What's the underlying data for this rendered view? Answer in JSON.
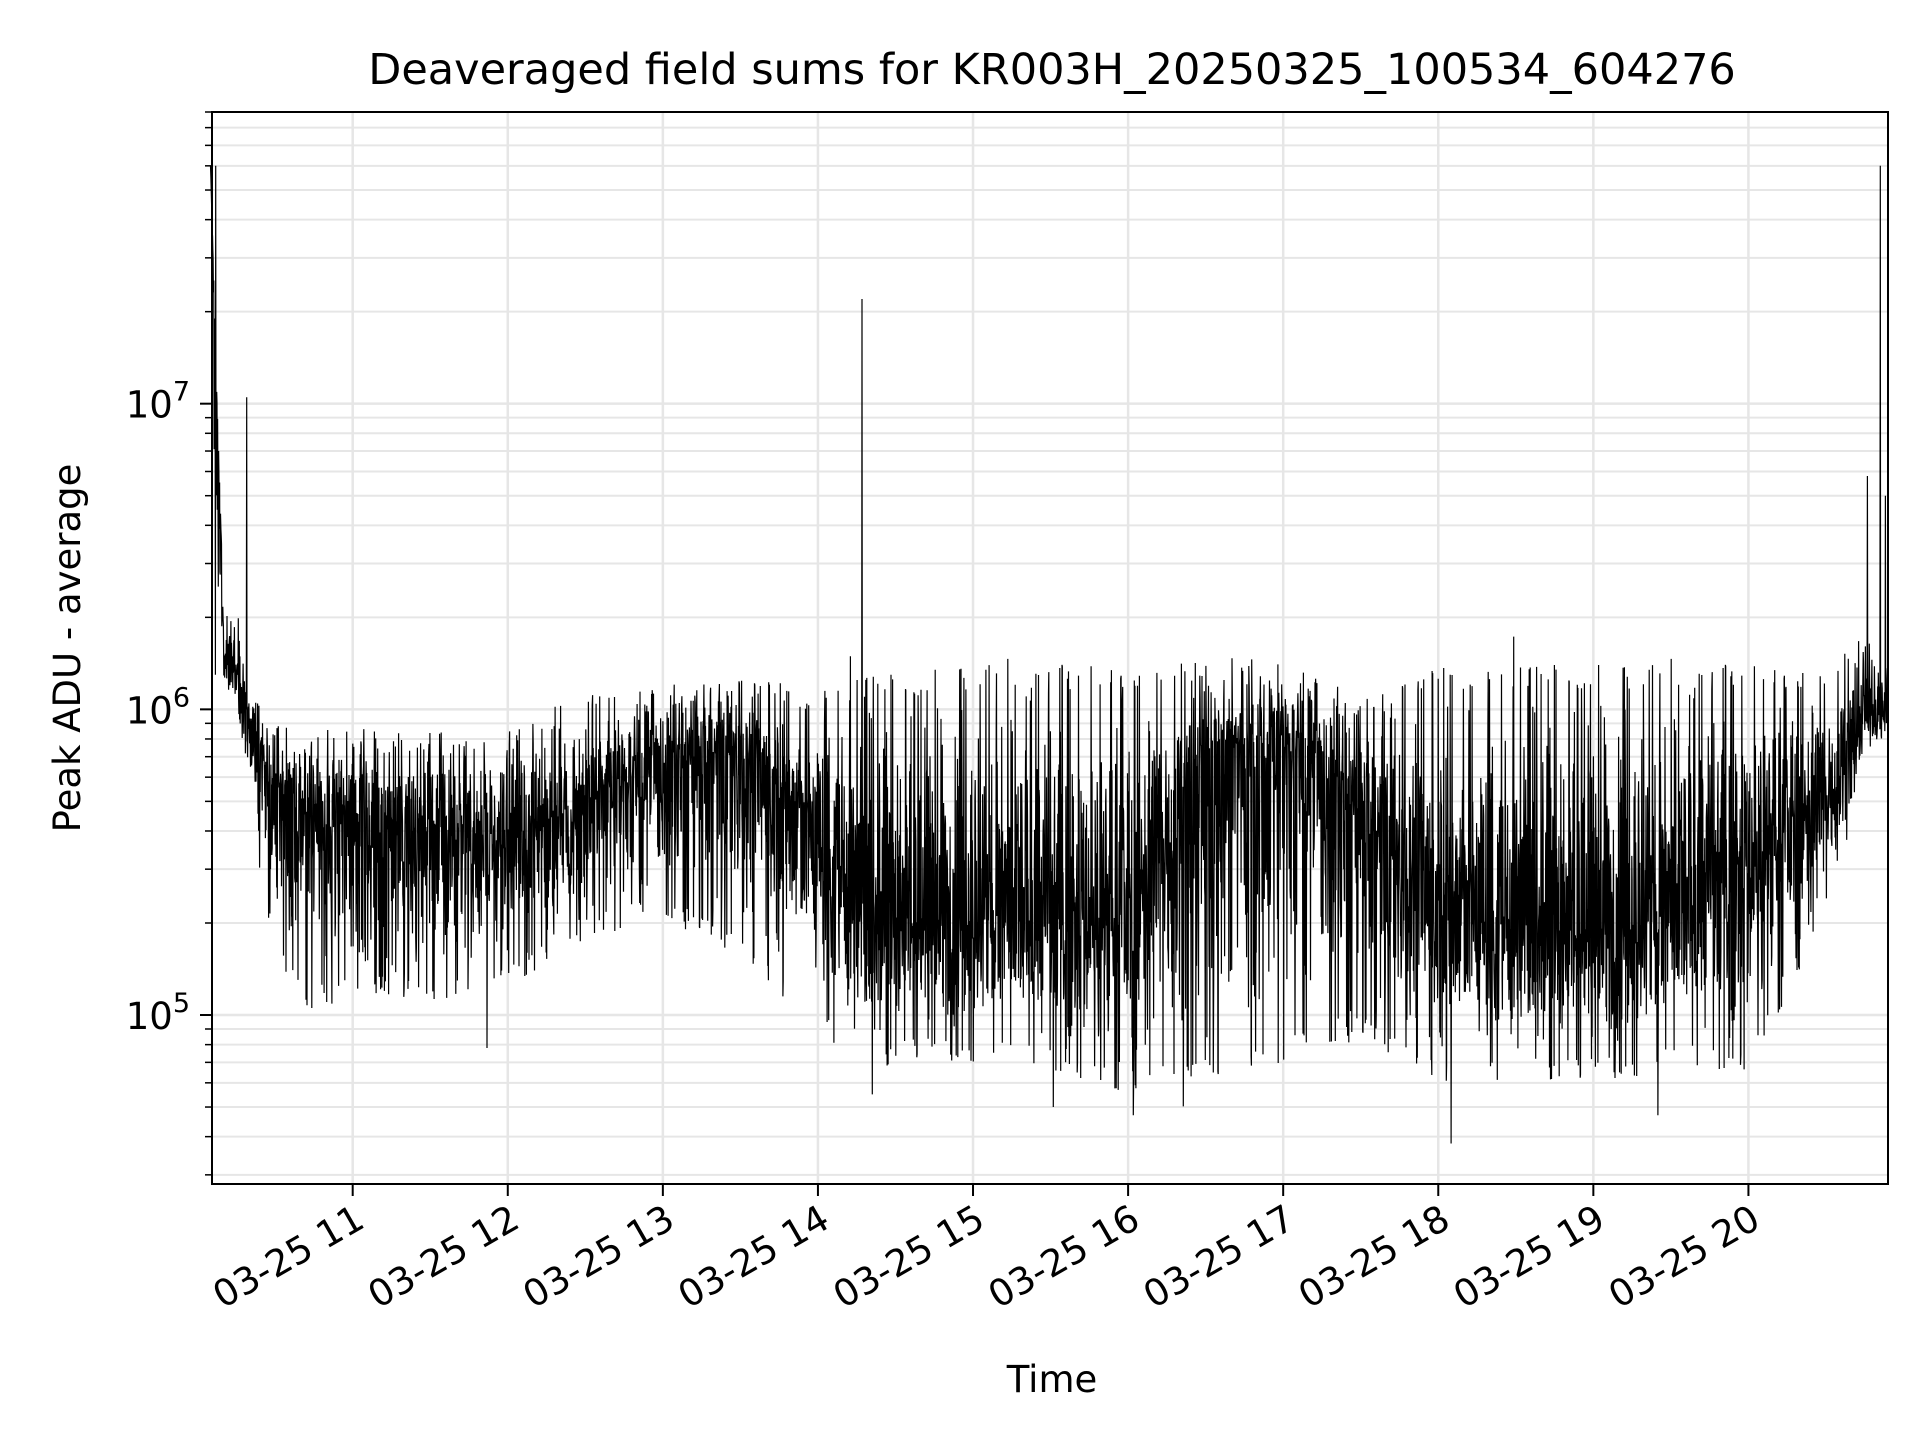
{
  "chart_data": {
    "type": "line",
    "title": "Deaveraged field sums for KR003H_20250325_100534_604276",
    "xlabel": "Time",
    "ylabel": "Peak ADU - average",
    "yscale": "log",
    "ylim": [
      28000,
      90000000
    ],
    "xlim": [
      "2025-03-25 10:05:34",
      "2025-03-25 20:54:00"
    ],
    "x_ticks": [
      {
        "t": "2025-03-25 11:00",
        "label": "03-25 11"
      },
      {
        "t": "2025-03-25 12:00",
        "label": "03-25 12"
      },
      {
        "t": "2025-03-25 13:00",
        "label": "03-25 13"
      },
      {
        "t": "2025-03-25 14:00",
        "label": "03-25 14"
      },
      {
        "t": "2025-03-25 15:00",
        "label": "03-25 15"
      },
      {
        "t": "2025-03-25 16:00",
        "label": "03-25 16"
      },
      {
        "t": "2025-03-25 17:00",
        "label": "03-25 17"
      },
      {
        "t": "2025-03-25 18:00",
        "label": "03-25 18"
      },
      {
        "t": "2025-03-25 19:00",
        "label": "03-25 19"
      },
      {
        "t": "2025-03-25 20:00",
        "label": "03-25 20"
      }
    ],
    "y_ticks": [
      {
        "value": 100000,
        "base": "10",
        "exp": "5"
      },
      {
        "value": 1000000,
        "base": "10",
        "exp": "6"
      },
      {
        "value": 10000000,
        "base": "10",
        "exp": "7"
      }
    ],
    "grid": true,
    "legend": "none",
    "line_color": "#000000",
    "series": [
      {
        "t": [
          "2025-03-25 10:05",
          "2025-03-25 10:10",
          "2025-03-25 10:15",
          "2025-03-25 10:20",
          "2025-03-25 10:30",
          "2025-03-25 10:45",
          "2025-03-25 11:00",
          "2025-03-25 11:30",
          "2025-03-25 12:00",
          "2025-03-25 12:30",
          "2025-03-25 13:00",
          "2025-03-25 13:30",
          "2025-03-25 14:00",
          "2025-03-25 14:20",
          "2025-03-25 14:30",
          "2025-03-25 15:00",
          "2025-03-25 15:30",
          "2025-03-25 16:00",
          "2025-03-25 16:30",
          "2025-03-25 17:00",
          "2025-03-25 17:30",
          "2025-03-25 18:00",
          "2025-03-25 18:30",
          "2025-03-25 19:00",
          "2025-03-25 19:30",
          "2025-03-25 20:00",
          "2025-03-25 20:30",
          "2025-03-25 20:45",
          "2025-03-25 20:54"
        ],
        "median": [
          60000000,
          1600000,
          1300000,
          900000,
          500000,
          450000,
          450000,
          380000,
          380000,
          520000,
          650000,
          750000,
          380000,
          220000,
          220000,
          210000,
          210000,
          210000,
          700000,
          800000,
          450000,
          220000,
          200000,
          200000,
          210000,
          320000,
          500000,
          1000000,
          1000000
        ],
        "upper": [
          60000000,
          2300000,
          2300000,
          1100000,
          950000,
          900000,
          900000,
          850000,
          900000,
          1100000,
          1200000,
          1300000,
          1200000,
          1300000,
          1300000,
          1400000,
          1400000,
          1400000,
          1500000,
          1450000,
          1100000,
          1400000,
          1400000,
          1400000,
          1400000,
          1400000,
          1400000,
          1800000,
          1500000
        ],
        "lower": [
          1100000,
          1100000,
          1000000,
          500000,
          150000,
          100000,
          120000,
          110000,
          120000,
          180000,
          200000,
          150000,
          90000,
          60000,
          70000,
          70000,
          65000,
          55000,
          60000,
          70000,
          80000,
          60000,
          60000,
          60000,
          65000,
          65000,
          200000,
          700000,
          800000
        ],
        "spikes": [
          {
            "t": "2025-03-25 10:07",
            "value": 60000000
          },
          {
            "t": "2025-03-25 10:19",
            "value": 10500000
          },
          {
            "t": "2025-03-25 14:17",
            "value": 22000000
          },
          {
            "t": "2025-03-25 20:46",
            "value": 5800000
          },
          {
            "t": "2025-03-25 20:51",
            "value": 60000000
          },
          {
            "t": "2025-03-25 20:53",
            "value": 5000000
          }
        ],
        "dips": [
          {
            "t": "2025-03-25 11:52",
            "value": 78000
          },
          {
            "t": "2025-03-25 14:21",
            "value": 55000
          },
          {
            "t": "2025-03-25 15:31",
            "value": 50000
          },
          {
            "t": "2025-03-25 16:02",
            "value": 47000
          },
          {
            "t": "2025-03-25 18:05",
            "value": 38000
          },
          {
            "t": "2025-03-25 19:25",
            "value": 47000
          }
        ]
      }
    ]
  }
}
